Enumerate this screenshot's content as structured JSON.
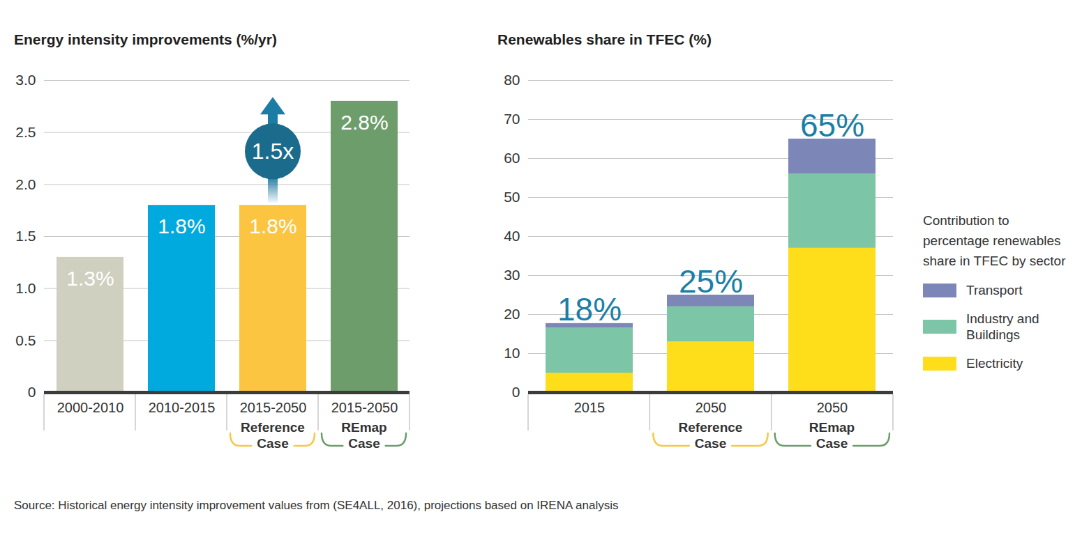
{
  "chart_data": [
    {
      "type": "bar",
      "title": "Energy intensity improvements (%/yr)",
      "categories": [
        "2000-2010",
        "2010-2015",
        "2015-2050",
        "2015-2050"
      ],
      "scenarios": [
        null,
        null,
        {
          "label": "Reference Case",
          "color": "#f7c843"
        },
        {
          "label": "REmap Case",
          "color": "#6c9d6b"
        }
      ],
      "values": [
        1.3,
        1.8,
        1.8,
        2.8
      ],
      "value_labels": [
        "1.3%",
        "1.8%",
        "1.8%",
        "2.8%"
      ],
      "colors": [
        "#cfd0c0",
        "#00aadf",
        "#fcc541",
        "#6c9d6b"
      ],
      "data_labels": true,
      "annotation": "1.5x",
      "ylim": [
        0,
        3
      ],
      "yticks": [
        0,
        0.5,
        {
          "value": 1,
          "label": "1.0"
        },
        1.5,
        {
          "value": 2,
          "label": "2.0"
        },
        2.5,
        {
          "value": 3,
          "label": "3.0"
        }
      ],
      "grid": true
    },
    {
      "type": "bar",
      "stacked": true,
      "title": "Renewables share in TFEC (%)",
      "categories": [
        "2015",
        "2050",
        "2050"
      ],
      "scenarios": [
        null,
        {
          "label": "Reference Case",
          "color": "#f7c843"
        },
        {
          "label": "REmap Case",
          "color": "#6c9d6b"
        }
      ],
      "series": [
        {
          "name": "Electricity",
          "color": "#fede1b",
          "values": [
            5,
            13,
            37
          ]
        },
        {
          "name": "Industry and Buildings",
          "color": "#7cc5a6",
          "values": [
            11.6,
            9,
            19
          ]
        },
        {
          "name": "Transport",
          "color": "#7c87b8",
          "values": [
            1.1,
            3,
            9
          ]
        }
      ],
      "totals": [
        17.7,
        25,
        65
      ],
      "total_labels": [
        "18%",
        "25%",
        "65%"
      ],
      "legend": "right",
      "legend_title": "Contribution to percentage renewables share in TFEC by sector",
      "ylim": [
        0,
        80
      ],
      "yticks": [
        0,
        10,
        20,
        30,
        40,
        50,
        60,
        70,
        80
      ],
      "grid": true
    }
  ],
  "source": "Source: Historical energy intensity improvement values from (SE4ALL, 2016), projections based on IRENA analysis"
}
